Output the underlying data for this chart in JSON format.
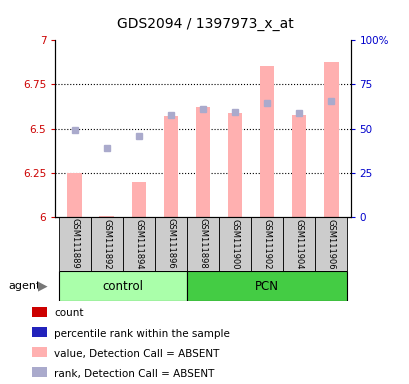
{
  "title": "GDS2094 / 1397973_x_at",
  "samples": [
    "GSM111889",
    "GSM111892",
    "GSM111894",
    "GSM111896",
    "GSM111898",
    "GSM111900",
    "GSM111902",
    "GSM111904",
    "GSM111906"
  ],
  "ylim_left": [
    6.0,
    7.0
  ],
  "ylim_right": [
    0,
    100
  ],
  "yticks_left": [
    6.0,
    6.25,
    6.5,
    6.75,
    7.0
  ],
  "yticks_right": [
    0,
    25,
    50,
    75,
    100
  ],
  "ytick_labels_left": [
    "6",
    "6.25",
    "6.5",
    "6.75",
    "7"
  ],
  "ytick_labels_right": [
    "0",
    "25",
    "50",
    "75",
    "100%"
  ],
  "bar_values": [
    6.25,
    6.005,
    6.2,
    6.57,
    6.62,
    6.59,
    6.855,
    6.58,
    6.875
  ],
  "rank_values": [
    6.49,
    6.39,
    6.46,
    6.575,
    6.61,
    6.595,
    6.645,
    6.59,
    6.655
  ],
  "bar_color": "#FFB0B0",
  "rank_color": "#AAAACC",
  "bar_base": 6.0,
  "bar_width": 0.45,
  "marker_size": 4.5,
  "grid_ticks": [
    6.25,
    6.5,
    6.75
  ],
  "control_indices": [
    0,
    1,
    2,
    3
  ],
  "pcn_indices": [
    4,
    5,
    6,
    7,
    8
  ],
  "control_color": "#AAFFAA",
  "pcn_color": "#44CC44",
  "sample_box_color": "#CCCCCC",
  "legend_items": [
    {
      "color": "#CC0000",
      "label": "count"
    },
    {
      "color": "#2222BB",
      "label": "percentile rank within the sample"
    },
    {
      "color": "#FFB0B0",
      "label": "value, Detection Call = ABSENT"
    },
    {
      "color": "#AAAACC",
      "label": "rank, Detection Call = ABSENT"
    }
  ],
  "left_axis_color": "#CC0000",
  "right_axis_color": "#0000CC",
  "title_fontsize": 10,
  "tick_fontsize": 7.5,
  "sample_fontsize": 6.0,
  "legend_fontsize": 7.5,
  "group_fontsize": 8.5
}
